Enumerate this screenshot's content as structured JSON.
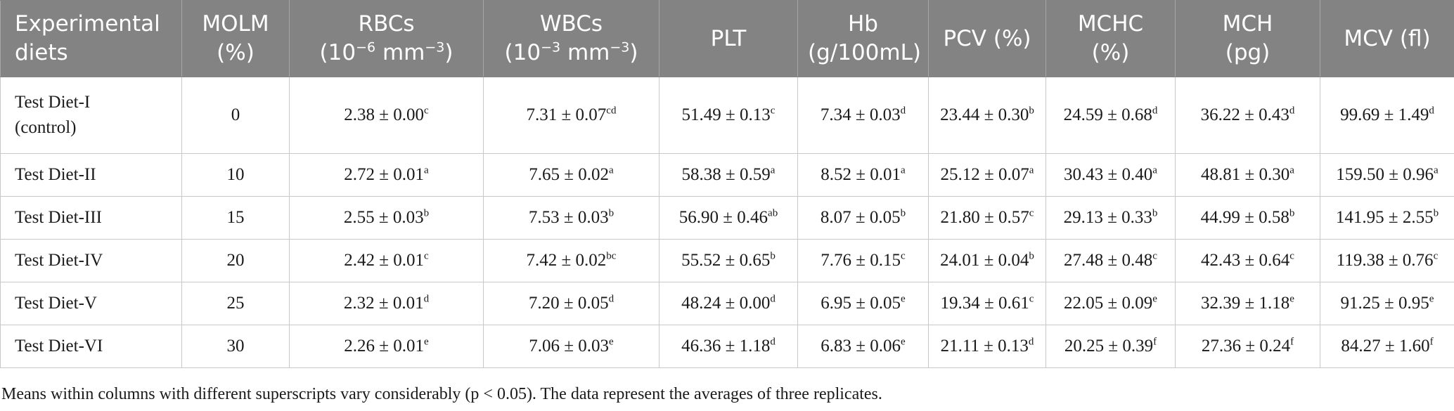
{
  "table": {
    "headers": [
      {
        "lines": [
          "Experimental",
          "diets"
        ]
      },
      {
        "lines": [
          "MOLM",
          "(%)"
        ]
      },
      {
        "lines": [
          "RBCs"
        ],
        "unit": {
          "pre": "(10",
          "exp1": "−6",
          "mid": " mm",
          "exp2": "−3",
          "post": ")"
        }
      },
      {
        "lines": [
          "WBCs"
        ],
        "unit": {
          "pre": "(10",
          "exp1": "−3",
          "mid": " mm",
          "exp2": "−3",
          "post": ")"
        }
      },
      {
        "lines": [
          "PLT"
        ]
      },
      {
        "lines": [
          "Hb",
          "(g/100mL)"
        ]
      },
      {
        "lines": [
          "PCV (%)"
        ]
      },
      {
        "lines": [
          "MCHC",
          "(%)"
        ]
      },
      {
        "lines": [
          "MCH",
          "(pg)"
        ]
      },
      {
        "lines": [
          "MCV (fl)"
        ]
      }
    ],
    "rows": [
      {
        "diet_lines": [
          "Test Diet-I",
          "(control)"
        ],
        "molm": "0",
        "cells": [
          {
            "v": "2.38 ± 0.00",
            "s": "c"
          },
          {
            "v": "7.31 ± 0.07",
            "s": "cd"
          },
          {
            "v": "51.49 ± 0.13",
            "s": "c"
          },
          {
            "v": "7.34 ± 0.03",
            "s": "d"
          },
          {
            "v": "23.44 ± 0.30",
            "s": "b"
          },
          {
            "v": "24.59 ± 0.68",
            "s": "d"
          },
          {
            "v": "36.22 ± 0.43",
            "s": "d"
          },
          {
            "v": "99.69 ± 1.49",
            "s": "d"
          }
        ]
      },
      {
        "diet_lines": [
          "Test Diet-II"
        ],
        "molm": "10",
        "cells": [
          {
            "v": "2.72 ± 0.01",
            "s": "a"
          },
          {
            "v": "7.65 ± 0.02",
            "s": "a"
          },
          {
            "v": "58.38 ± 0.59",
            "s": "a"
          },
          {
            "v": "8.52 ± 0.01",
            "s": "a"
          },
          {
            "v": "25.12 ± 0.07",
            "s": "a"
          },
          {
            "v": "30.43 ± 0.40",
            "s": "a"
          },
          {
            "v": "48.81 ± 0.30",
            "s": "a"
          },
          {
            "v": "159.50 ± 0.96",
            "s": "a"
          }
        ]
      },
      {
        "diet_lines": [
          "Test Diet-III"
        ],
        "molm": "15",
        "cells": [
          {
            "v": "2.55 ± 0.03",
            "s": "b"
          },
          {
            "v": "7.53 ± 0.03",
            "s": "b"
          },
          {
            "v": "56.90 ± 0.46",
            "s": "ab"
          },
          {
            "v": "8.07 ± 0.05",
            "s": "b"
          },
          {
            "v": "21.80 ± 0.57",
            "s": "c"
          },
          {
            "v": "29.13 ± 0.33",
            "s": "b"
          },
          {
            "v": "44.99 ± 0.58",
            "s": "b"
          },
          {
            "v": "141.95 ± 2.55",
            "s": "b"
          }
        ]
      },
      {
        "diet_lines": [
          "Test Diet-IV"
        ],
        "molm": "20",
        "cells": [
          {
            "v": "2.42 ± 0.01",
            "s": "c"
          },
          {
            "v": "7.42 ± 0.02",
            "s": "bc"
          },
          {
            "v": "55.52 ± 0.65",
            "s": "b"
          },
          {
            "v": "7.76 ± 0.15",
            "s": "c"
          },
          {
            "v": "24.01 ± 0.04",
            "s": "b"
          },
          {
            "v": "27.48 ± 0.48",
            "s": "c"
          },
          {
            "v": "42.43 ± 0.64",
            "s": "c"
          },
          {
            "v": "119.38 ± 0.76",
            "s": "c"
          }
        ]
      },
      {
        "diet_lines": [
          "Test Diet-V"
        ],
        "molm": "25",
        "cells": [
          {
            "v": "2.32 ± 0.01",
            "s": "d"
          },
          {
            "v": "7.20 ± 0.05",
            "s": "d"
          },
          {
            "v": "48.24 ± 0.00",
            "s": "d"
          },
          {
            "v": "6.95 ± 0.05",
            "s": "e"
          },
          {
            "v": "19.34 ± 0.61",
            "s": "c"
          },
          {
            "v": "22.05 ± 0.09",
            "s": "e"
          },
          {
            "v": "32.39 ± 1.18",
            "s": "e"
          },
          {
            "v": "91.25 ± 0.95",
            "s": "e"
          }
        ]
      },
      {
        "diet_lines": [
          "Test Diet-VI"
        ],
        "molm": "30",
        "cells": [
          {
            "v": "2.26 ± 0.01",
            "s": "e"
          },
          {
            "v": "7.06 ± 0.03",
            "s": "e"
          },
          {
            "v": "46.36 ± 1.18",
            "s": "d"
          },
          {
            "v": "6.83 ± 0.06",
            "s": "e"
          },
          {
            "v": "21.11 ± 0.13",
            "s": "d"
          },
          {
            "v": "20.25 ± 0.39",
            "s": "f"
          },
          {
            "v": "27.36 ± 0.24",
            "s": "f"
          },
          {
            "v": "84.27 ± 1.60",
            "s": "f"
          }
        ]
      }
    ]
  },
  "footnote": "Means within columns with different superscripts vary considerably (p < 0.05). The data represent the averages of three replicates.",
  "colors": {
    "header_bg": "#838383",
    "header_text": "#ffffff",
    "grid": "#c8c8c8",
    "text": "#1a1a1a"
  }
}
